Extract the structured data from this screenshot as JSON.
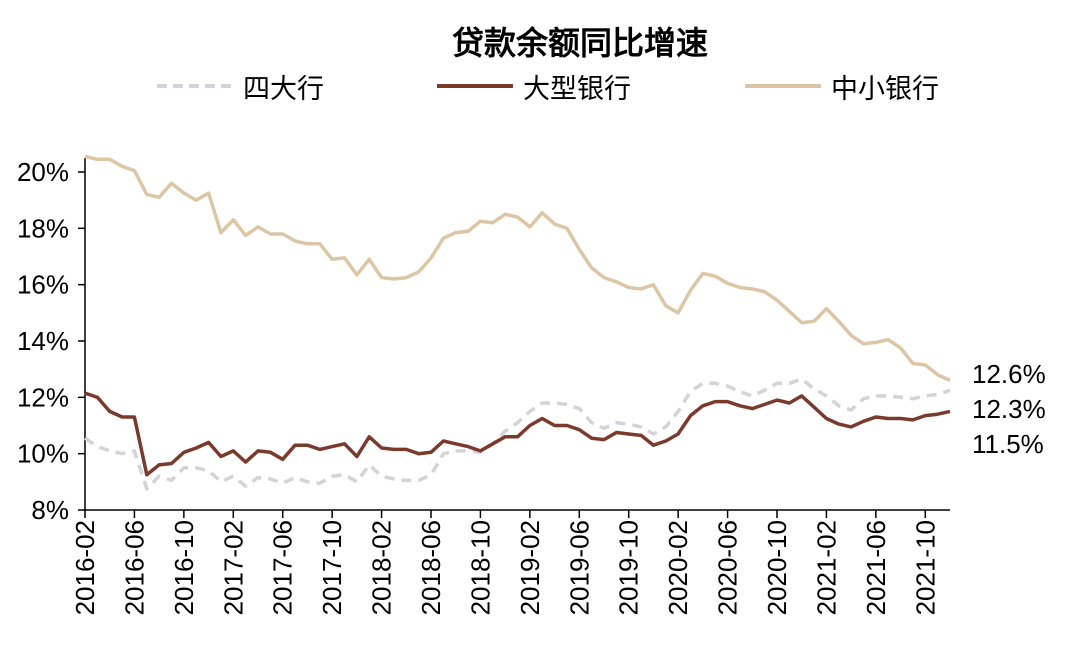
{
  "chart_data": {
    "type": "line",
    "title": "贷款余额同比增速",
    "xlabel": "",
    "ylabel": "",
    "ylim": [
      8,
      20
    ],
    "yticks": [
      "8%",
      "10%",
      "12%",
      "14%",
      "16%",
      "18%",
      "20%"
    ],
    "x": [
      "2016-02",
      "2016-03",
      "2016-04",
      "2016-05",
      "2016-06",
      "2016-07",
      "2016-08",
      "2016-09",
      "2016-10",
      "2016-11",
      "2016-12",
      "2017-01",
      "2017-02",
      "2017-03",
      "2017-04",
      "2017-05",
      "2017-06",
      "2017-07",
      "2017-08",
      "2017-09",
      "2017-10",
      "2017-11",
      "2017-12",
      "2018-01",
      "2018-02",
      "2018-03",
      "2018-04",
      "2018-05",
      "2018-06",
      "2018-07",
      "2018-08",
      "2018-09",
      "2018-10",
      "2018-11",
      "2018-12",
      "2019-01",
      "2019-02",
      "2019-03",
      "2019-04",
      "2019-05",
      "2019-06",
      "2019-07",
      "2019-08",
      "2019-09",
      "2019-10",
      "2019-11",
      "2019-12",
      "2020-01",
      "2020-02",
      "2020-03",
      "2020-04",
      "2020-05",
      "2020-06",
      "2020-07",
      "2020-08",
      "2020-09",
      "2020-10",
      "2020-11",
      "2020-12",
      "2021-01",
      "2021-02",
      "2021-03",
      "2021-04",
      "2021-05",
      "2021-06",
      "2021-07",
      "2021-08",
      "2021-09",
      "2021-10",
      "2021-11",
      "2021-12"
    ],
    "xtick_labels": [
      "2016-02",
      "2016-06",
      "2016-10",
      "2017-02",
      "2017-06",
      "2017-10",
      "2018-02",
      "2018-06",
      "2018-10",
      "2019-02",
      "2019-06",
      "2019-10",
      "2020-02",
      "2020-06",
      "2020-10",
      "2021-02",
      "2021-06",
      "2021-10"
    ],
    "series": [
      {
        "name": "四大行",
        "color": "#d3d3d9",
        "dash": true,
        "values": [
          10.55,
          10.25,
          10.1,
          10.0,
          10.1,
          8.75,
          9.2,
          9.05,
          9.5,
          9.5,
          9.4,
          9.0,
          9.2,
          8.85,
          9.15,
          9.1,
          8.95,
          9.15,
          9.0,
          8.95,
          9.2,
          9.25,
          9.0,
          9.6,
          9.2,
          9.1,
          9.05,
          9.05,
          9.25,
          10.0,
          10.1,
          10.1,
          10.05,
          10.35,
          10.8,
          11.1,
          11.5,
          11.8,
          11.8,
          11.75,
          11.6,
          11.1,
          10.9,
          11.1,
          11.05,
          10.95,
          10.7,
          10.95,
          11.5,
          12.2,
          12.5,
          12.5,
          12.4,
          12.2,
          12.05,
          12.25,
          12.5,
          12.5,
          12.65,
          12.3,
          12.05,
          11.7,
          11.55,
          11.95,
          12.05,
          12.05,
          12.0,
          11.95,
          12.05,
          12.1,
          12.25
        ]
      },
      {
        "name": "大型银行",
        "color": "#7b3b2c",
        "dash": false,
        "values": [
          12.15,
          12.0,
          11.5,
          11.3,
          11.3,
          9.25,
          9.6,
          9.65,
          10.05,
          10.2,
          10.4,
          9.9,
          10.1,
          9.7,
          10.1,
          10.05,
          9.8,
          10.3,
          10.3,
          10.15,
          10.25,
          10.35,
          9.9,
          10.6,
          10.2,
          10.15,
          10.15,
          10.0,
          10.05,
          10.45,
          10.35,
          10.25,
          10.1,
          10.35,
          10.6,
          10.6,
          11.0,
          11.25,
          11.0,
          11.0,
          10.85,
          10.55,
          10.5,
          10.75,
          10.7,
          10.65,
          10.3,
          10.45,
          10.7,
          11.35,
          11.7,
          11.85,
          11.85,
          11.7,
          11.6,
          11.75,
          11.9,
          11.8,
          12.05,
          11.65,
          11.25,
          11.05,
          10.95,
          11.15,
          11.3,
          11.25,
          11.25,
          11.2,
          11.35,
          11.4,
          11.5
        ]
      },
      {
        "name": "中小银行",
        "color": "#dcc6a6",
        "dash": false,
        "values": [
          20.55,
          20.45,
          20.45,
          20.2,
          20.05,
          19.2,
          19.1,
          19.6,
          19.25,
          19.0,
          19.25,
          17.85,
          18.3,
          17.75,
          18.05,
          17.8,
          17.8,
          17.55,
          17.45,
          17.45,
          16.9,
          16.95,
          16.35,
          16.9,
          16.25,
          16.2,
          16.25,
          16.45,
          16.95,
          17.65,
          17.85,
          17.9,
          18.25,
          18.2,
          18.5,
          18.4,
          18.05,
          18.55,
          18.15,
          18.0,
          17.25,
          16.6,
          16.25,
          16.1,
          15.9,
          15.85,
          16.0,
          15.25,
          15.0,
          15.8,
          16.4,
          16.3,
          16.05,
          15.9,
          15.85,
          15.75,
          15.45,
          15.05,
          14.65,
          14.7,
          15.15,
          14.7,
          14.2,
          13.9,
          13.95,
          14.05,
          13.75,
          13.2,
          13.15,
          12.8,
          12.6
        ]
      }
    ],
    "end_labels": [
      "12.6%",
      "12.3%",
      "11.5%"
    ],
    "legend_position": "top",
    "grid": false
  }
}
